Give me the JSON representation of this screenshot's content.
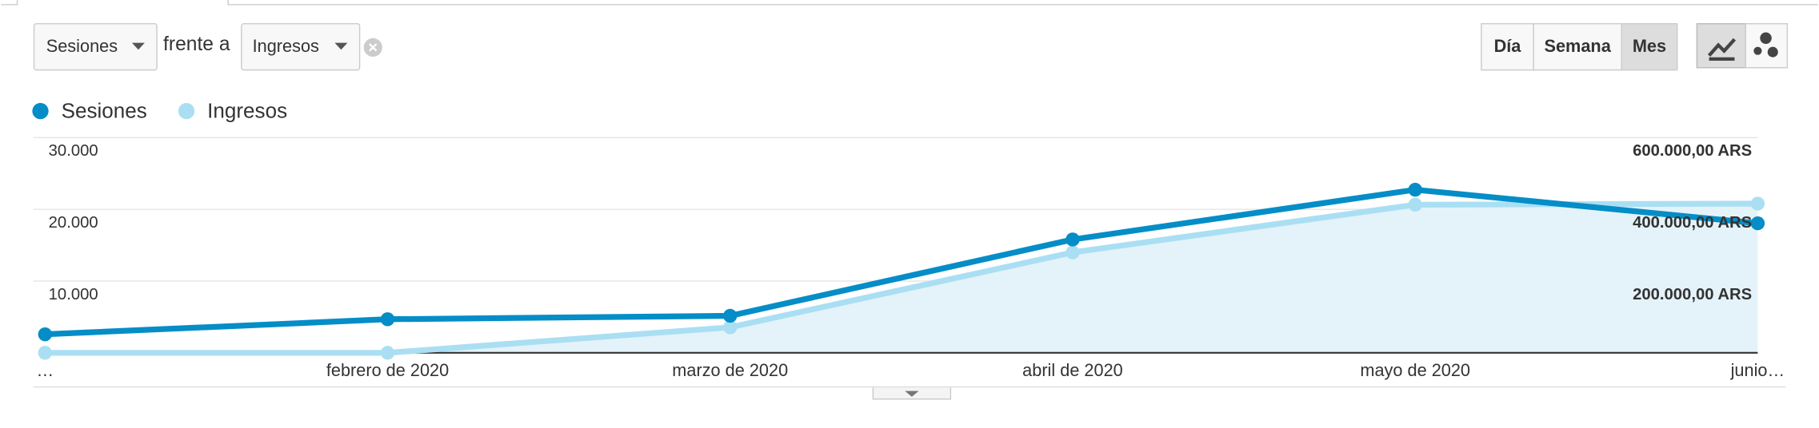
{
  "controls": {
    "metric1": "Sesiones",
    "versus": "frente a",
    "metric2": "Ingresos",
    "periods": [
      "Día",
      "Semana",
      "Mes"
    ]
  },
  "chart_data": {
    "type": "line",
    "categories": [
      "…",
      "febrero de 2020",
      "marzo de 2020",
      "abril de 2020",
      "mayo de 2020",
      "junio…"
    ],
    "series": [
      {
        "name": "Sesiones",
        "color": "#058dc7",
        "values": [
          2580,
          4680,
          5160,
          15800,
          22740,
          18060
        ]
      },
      {
        "name": "Ingresos",
        "color": "#aadff3",
        "axis": "y2",
        "fill": "#e4f3f9",
        "values": [
          0,
          0,
          71000,
          280000,
          413000,
          416000
        ]
      }
    ],
    "ylim": [
      0,
      30000
    ],
    "yticks": [
      {
        "value": 10000,
        "label": "10.000"
      },
      {
        "value": 20000,
        "label": "20.000"
      },
      {
        "value": 30000,
        "label": "30.000"
      }
    ],
    "y2lim": [
      0,
      600000
    ],
    "y2ticks": [
      {
        "value": 200000,
        "label": "200.000,00 ARS"
      },
      {
        "value": 400000,
        "label": "400.000,00 ARS"
      },
      {
        "value": 600000,
        "label": "600.000,00 ARS"
      }
    ],
    "grid": true
  }
}
